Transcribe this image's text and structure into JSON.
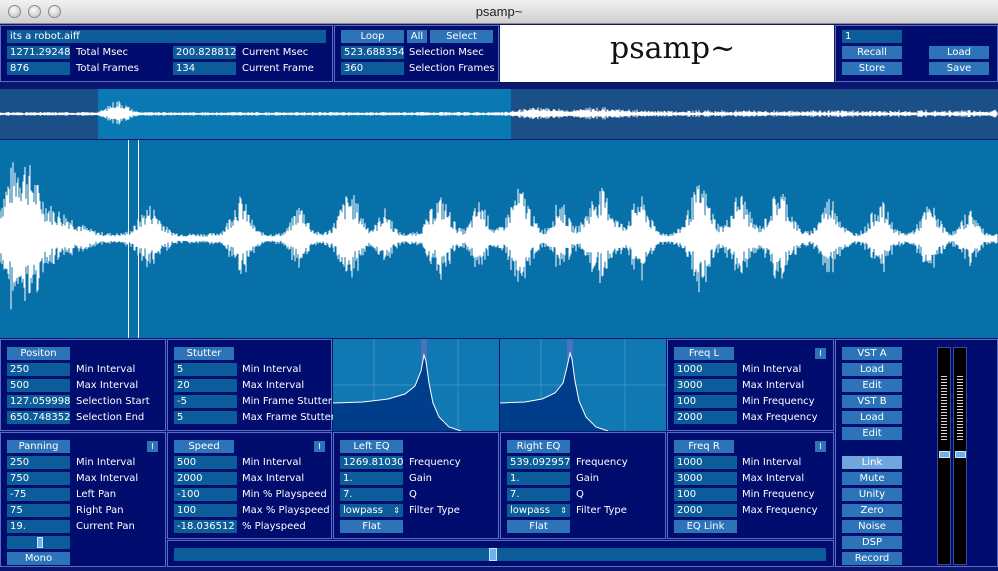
{
  "window": {
    "title": "psamp~"
  },
  "file": {
    "name": "its a robot.aiff",
    "total_msec": "1271.29248",
    "total_msec_label": "Total Msec",
    "total_frames": "876",
    "total_frames_label": "Total Frames",
    "current_msec": "200.828812",
    "current_msec_label": "Current Msec",
    "current_frame": "134",
    "current_frame_label": "Current Frame"
  },
  "selection": {
    "loop_label": "Loop",
    "all_label": "All",
    "select_label": "Select",
    "msec": "523.688354",
    "msec_label": "Selection Msec",
    "frames": "360",
    "frames_label": "Selection Frames"
  },
  "logo": {
    "text": "psamp~"
  },
  "presets": {
    "number": "1",
    "recall_label": "Recall",
    "store_label": "Store",
    "load_label": "Load",
    "save_label": "Save"
  },
  "position": {
    "title": "Positon",
    "rows": [
      {
        "value": "250",
        "label": "Min Interval"
      },
      {
        "value": "500",
        "label": "Max Interval"
      },
      {
        "value": "127.059998",
        "label": "Selection Start"
      },
      {
        "value": "650.748352",
        "label": "Selection End"
      }
    ]
  },
  "stutter": {
    "title": "Stutter",
    "rows": [
      {
        "value": "5",
        "label": "Min Interval"
      },
      {
        "value": "20",
        "label": "Max Interval"
      },
      {
        "value": "-5",
        "label": "Min Frame Stutter"
      },
      {
        "value": "5",
        "label": "Max Frame Stutter"
      }
    ]
  },
  "freq_l": {
    "title": "Freq L",
    "toggle": "I",
    "rows": [
      {
        "value": "1000",
        "label": "Min Interval"
      },
      {
        "value": "3000",
        "label": "Max Interval"
      },
      {
        "value": "100",
        "label": "Min Frequency"
      },
      {
        "value": "2000",
        "label": "Max Frequency"
      }
    ]
  },
  "panning": {
    "title": "Panning",
    "toggle": "I",
    "rows": [
      {
        "value": "250",
        "label": "Min Interval"
      },
      {
        "value": "750",
        "label": "Max Interval"
      },
      {
        "value": "-75",
        "label": "Left Pan"
      },
      {
        "value": "75",
        "label": "Right Pan"
      },
      {
        "value": "19.",
        "label": "Current Pan"
      }
    ],
    "mono_label": "Mono"
  },
  "speed": {
    "title": "Speed",
    "toggle": "I",
    "rows": [
      {
        "value": "500",
        "label": "Min Interval"
      },
      {
        "value": "2000",
        "label": "Max Interval"
      },
      {
        "value": "-100",
        "label": "Min % Playspeed"
      },
      {
        "value": "100",
        "label": "Max % Playspeed"
      },
      {
        "value": "-18.036512",
        "label": "% Playspeed"
      }
    ]
  },
  "left_eq": {
    "title": "Left EQ",
    "rows": [
      {
        "value": "1269.81030",
        "label": "Frequency"
      },
      {
        "value": "1.",
        "label": "Gain"
      },
      {
        "value": "7.",
        "label": "Q"
      },
      {
        "value": "lowpass",
        "label": "Filter Type"
      }
    ],
    "flat_label": "Flat"
  },
  "right_eq": {
    "title": "Right EQ",
    "rows": [
      {
        "value": "539.092957",
        "label": "Frequency"
      },
      {
        "value": "1.",
        "label": "Gain"
      },
      {
        "value": "7.",
        "label": "Q"
      },
      {
        "value": "lowpass",
        "label": "Filter Type"
      }
    ],
    "flat_label": "Flat"
  },
  "freq_r": {
    "title": "Freq R",
    "toggle": "I",
    "rows": [
      {
        "value": "1000",
        "label": "Min Interval"
      },
      {
        "value": "3000",
        "label": "Max Interval"
      },
      {
        "value": "100",
        "label": "Min Frequency"
      },
      {
        "value": "2000",
        "label": "Max Frequency"
      }
    ],
    "eq_link_label": "EQ Link"
  },
  "vst": {
    "vst_a": "VST A",
    "load_a": "Load",
    "edit_a": "Edit",
    "vst_b": "VST B",
    "load_b": "Load",
    "edit_b": "Edit",
    "link": "Link",
    "mute": "Mute",
    "unity": "Unity",
    "zero": "Zero",
    "noise": "Noise",
    "dsp": "DSP",
    "record": "Record"
  },
  "colors": {
    "panel_bg": "#000d6e",
    "field_bg": "#0c5c9a",
    "button_bg": "#2d73b8",
    "waveform_bg": "#0870a8",
    "waveform_fg": "#ffffff"
  }
}
